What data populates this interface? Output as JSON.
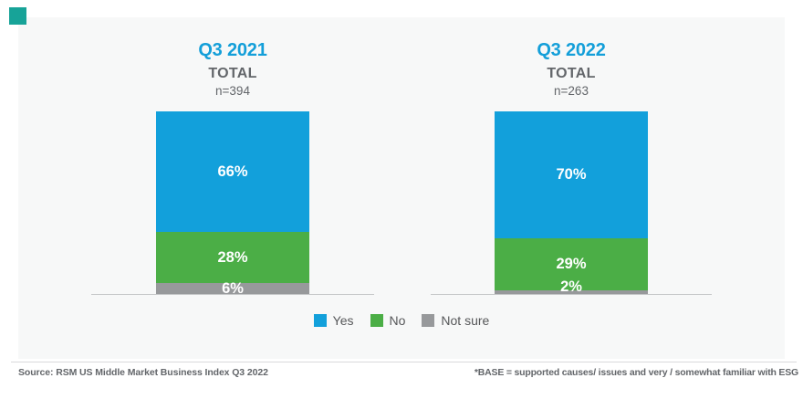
{
  "colors": {
    "accent_blue": "#149fd9",
    "panel_bg": "#f7f8f8",
    "text_gray": "#63666a",
    "legend_text": "#565759",
    "axis_line": "#c6c8c9",
    "divider": "#d9dadb",
    "logo_teal": "#17a398",
    "label_white": "#ffffff",
    "series": {
      "Yes": "#12a0db",
      "No": "#4bae46",
      "Not sure": "#97999b"
    }
  },
  "chart_data": {
    "type": "bar",
    "subtype": "stacked_percent_columns",
    "legend_position": "bottom",
    "grid": false,
    "ylim": [
      0,
      100
    ],
    "categories": [
      "Q3 2021",
      "Q3 2022"
    ],
    "series": [
      {
        "name": "Yes",
        "values": [
          66,
          70
        ]
      },
      {
        "name": "No",
        "values": [
          28,
          29
        ]
      },
      {
        "name": "Not sure",
        "values": [
          6,
          2
        ]
      }
    ],
    "groups": [
      {
        "title": "Q3 2021",
        "subtitle": "TOTAL",
        "n": "n=394",
        "segments": [
          {
            "name": "Yes",
            "value": 66,
            "label": "66%"
          },
          {
            "name": "No",
            "value": 28,
            "label": "28%"
          },
          {
            "name": "Not sure",
            "value": 6,
            "label": "6%"
          }
        ]
      },
      {
        "title": "Q3 2022",
        "subtitle": "TOTAL",
        "n": "n=263",
        "segments": [
          {
            "name": "Yes",
            "value": 70,
            "label": "70%"
          },
          {
            "name": "No",
            "value": 29,
            "label": "29%"
          },
          {
            "name": "Not sure",
            "value": 2,
            "label": "2%"
          }
        ]
      }
    ],
    "legend": [
      {
        "label": "Yes"
      },
      {
        "label": "No"
      },
      {
        "label": "Not sure"
      }
    ]
  },
  "footer": {
    "source": "Source: RSM US Middle Market Business Index Q3 2022",
    "base_note": "*BASE = supported causes/ issues and very / somewhat familiar with ESG"
  }
}
